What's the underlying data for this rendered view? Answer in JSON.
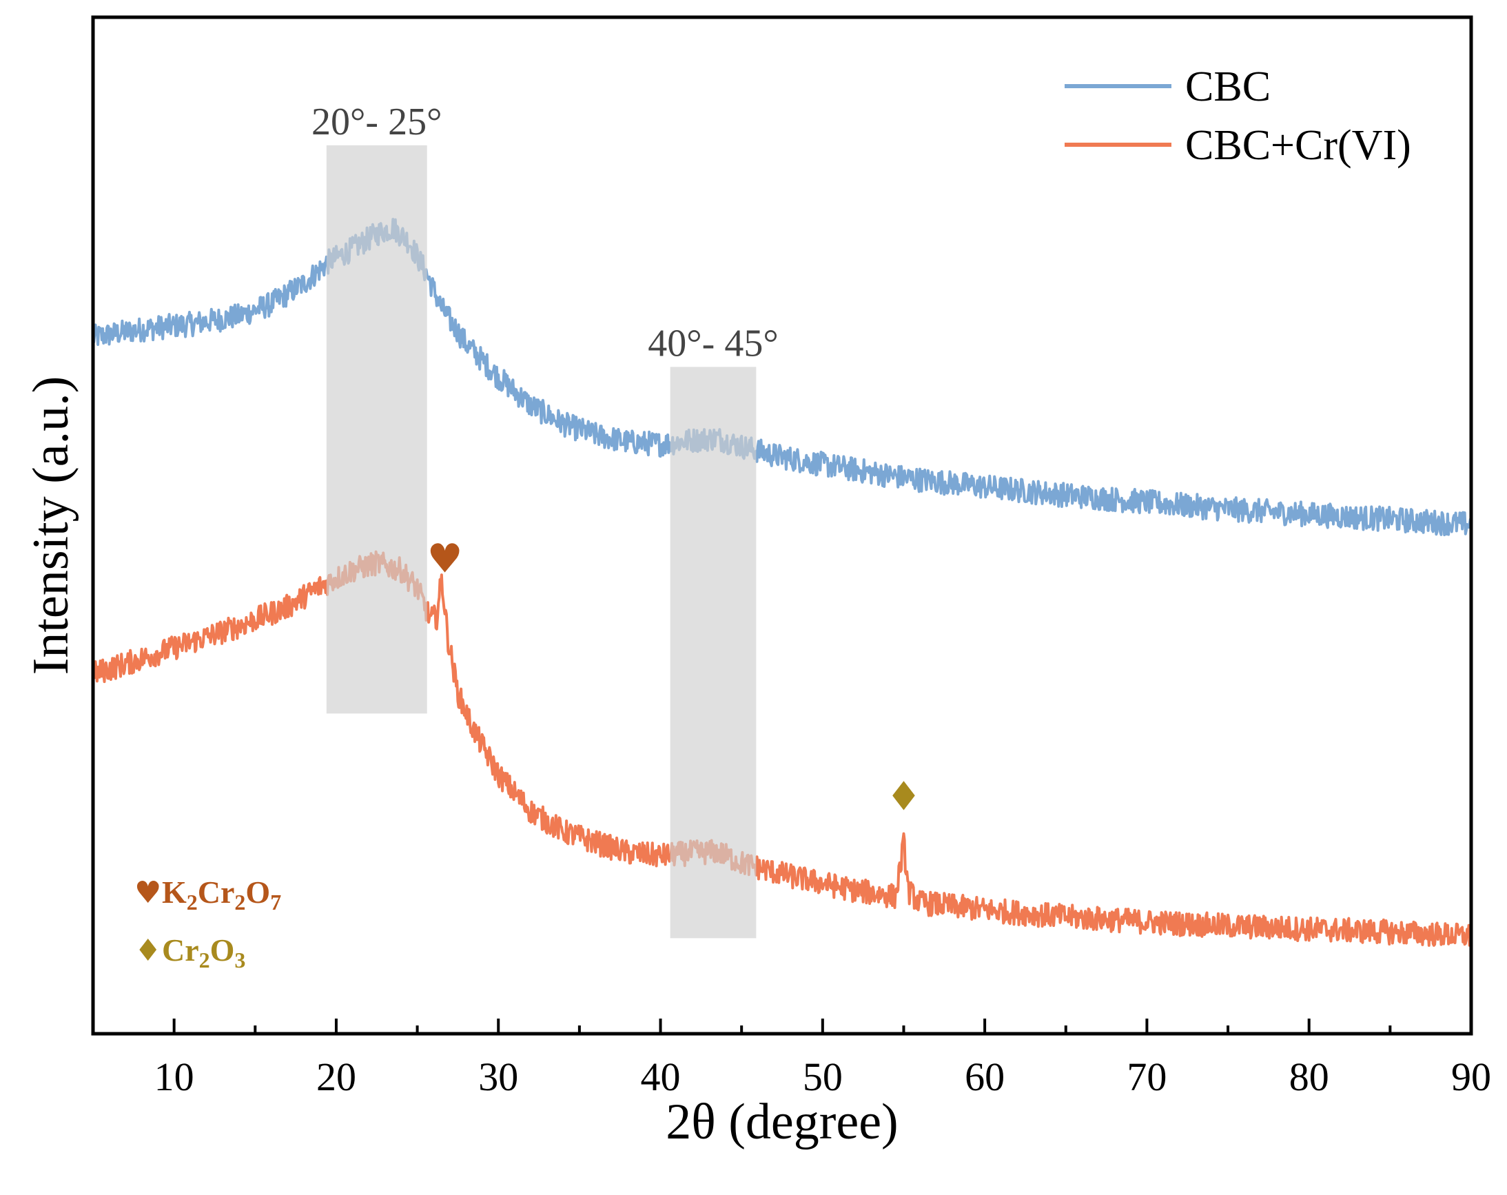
{
  "chart_data": {
    "type": "line",
    "title": "",
    "xlabel": "2θ (degree)",
    "ylabel": "Intensity (a.u.)",
    "xlim": [
      5,
      90
    ],
    "ylim": [
      0,
      100
    ],
    "x_ticks": [
      10,
      20,
      30,
      40,
      50,
      60,
      70,
      80,
      90
    ],
    "x_minor_step": 5,
    "y_ticks_shown": false,
    "grid": false,
    "legend_position": "top-right",
    "series": [
      {
        "name": "CBC",
        "color": "#7ba7d4",
        "noise": 1.2,
        "x": [
          5,
          8,
          11,
          14,
          16,
          18,
          19.5,
          21,
          22.5,
          23.5,
          24.5,
          25.5,
          26.5,
          28,
          30,
          32,
          34,
          36,
          38,
          40,
          42,
          43.5,
          45,
          47,
          50,
          55,
          60,
          65,
          70,
          75,
          80,
          85,
          90
        ],
        "y": [
          68.5,
          69.3,
          69.8,
          70.6,
          71.8,
          73.8,
          75.9,
          77.2,
          78.7,
          79.3,
          77.9,
          75.0,
          71.4,
          67.9,
          64.6,
          61.8,
          60.0,
          58.9,
          58.2,
          58.0,
          58.4,
          58.6,
          57.8,
          56.9,
          56.0,
          54.7,
          53.8,
          53.0,
          52.3,
          51.6,
          51.1,
          50.6,
          50.1
        ]
      },
      {
        "name": "CBC+Cr(VI)",
        "color": "#f07a52",
        "noise": 1.2,
        "x": [
          5,
          8,
          11,
          14,
          17,
          19,
          21,
          22.5,
          24,
          25,
          25.8,
          26.2,
          26.5,
          26.9,
          27.5,
          28.5,
          30,
          32,
          34,
          36,
          38,
          40,
          42,
          43.5,
          45,
          48,
          52,
          54.5,
          54.8,
          55,
          55.3,
          56,
          60,
          65,
          70,
          75,
          80,
          85,
          90
        ],
        "y": [
          35.4,
          36.9,
          38.5,
          40.1,
          42.0,
          44.0,
          45.6,
          46.3,
          45.6,
          43.8,
          40.8,
          41.0,
          44.8,
          38.8,
          33.5,
          29.8,
          25.5,
          21.9,
          19.9,
          18.8,
          17.8,
          17.5,
          17.8,
          17.9,
          16.8,
          15.5,
          14.1,
          13.5,
          16.5,
          18.7,
          14.0,
          12.9,
          12.2,
          11.5,
          11.0,
          10.6,
          10.3,
          10.0,
          9.6
        ]
      }
    ],
    "shaded_regions": [
      {
        "label": "20°- 25°",
        "x_start": 19.4,
        "x_end": 25.6,
        "y_start": 31.5,
        "y_end": 87.4
      },
      {
        "label": "40°- 45°",
        "x_start": 40.6,
        "x_end": 45.9,
        "y_start": 9.4,
        "y_end": 65.6
      }
    ],
    "peak_markers": [
      {
        "symbol": "♥",
        "phase": "K2Cr2O7",
        "x": 26.7,
        "y": 43.5,
        "color": "#b5561a"
      },
      {
        "symbol": "♦",
        "phase": "Cr2O3",
        "x": 55.0,
        "y": 20.1,
        "color": "#a88a1e"
      }
    ],
    "phase_legend": [
      {
        "symbol": "♥",
        "label": "K2Cr2O7",
        "formula_parts": [
          "K",
          "2",
          "Cr",
          "2",
          "O",
          "7"
        ],
        "color": "#b5561a"
      },
      {
        "symbol": "♦",
        "label": "Cr2O3",
        "formula_parts": [
          "Cr",
          "2",
          "O",
          "3"
        ],
        "color": "#a88a1e"
      }
    ]
  }
}
